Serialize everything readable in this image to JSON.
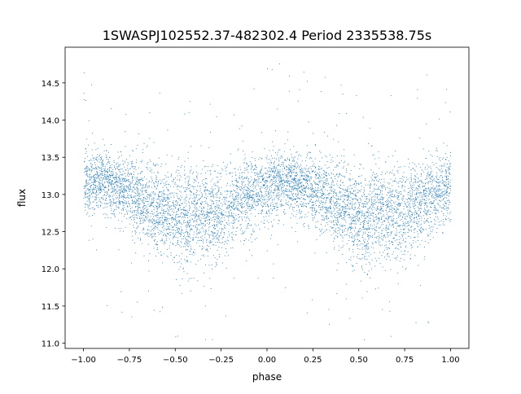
{
  "chart_data": {
    "type": "scatter",
    "title": "1SWASPJ102552.37-482302.4 Period 2335538.75s",
    "xlabel": "phase",
    "ylabel": "flux",
    "xlim": [
      -1.1,
      1.1
    ],
    "ylim": [
      10.93,
      14.98
    ],
    "xticks": [
      -1.0,
      -0.75,
      -0.5,
      -0.25,
      0.0,
      0.25,
      0.5,
      0.75,
      1.0
    ],
    "xtick_labels": [
      "−1.00",
      "−0.75",
      "−0.50",
      "−0.25",
      "0.00",
      "0.25",
      "0.50",
      "0.75",
      "1.00"
    ],
    "yticks": [
      11.0,
      11.5,
      12.0,
      12.5,
      13.0,
      13.5,
      14.0,
      14.5
    ],
    "ytick_labels": [
      "11.0",
      "11.5",
      "12.0",
      "12.5",
      "13.0",
      "13.5",
      "14.0",
      "14.5"
    ],
    "grid": false,
    "marker_color": "#1f77b4",
    "n_points": 7000,
    "scatter_sigma": 0.22,
    "outlier_fraction": 0.03,
    "trend": {
      "phase": [
        -1.0,
        -0.9,
        -0.8,
        -0.7,
        -0.6,
        -0.5,
        -0.45,
        -0.4,
        -0.3,
        -0.25,
        -0.2,
        -0.1,
        0.0,
        0.1,
        0.2,
        0.3,
        0.4,
        0.5,
        0.55,
        0.6,
        0.7,
        0.75,
        0.8,
        0.9,
        1.0
      ],
      "flux": [
        13.12,
        13.2,
        13.1,
        12.95,
        12.85,
        12.7,
        12.6,
        12.75,
        12.75,
        12.75,
        12.85,
        13.0,
        13.1,
        13.2,
        13.1,
        13.0,
        12.85,
        12.7,
        12.6,
        12.75,
        12.75,
        12.75,
        12.85,
        13.0,
        13.12
      ]
    }
  }
}
